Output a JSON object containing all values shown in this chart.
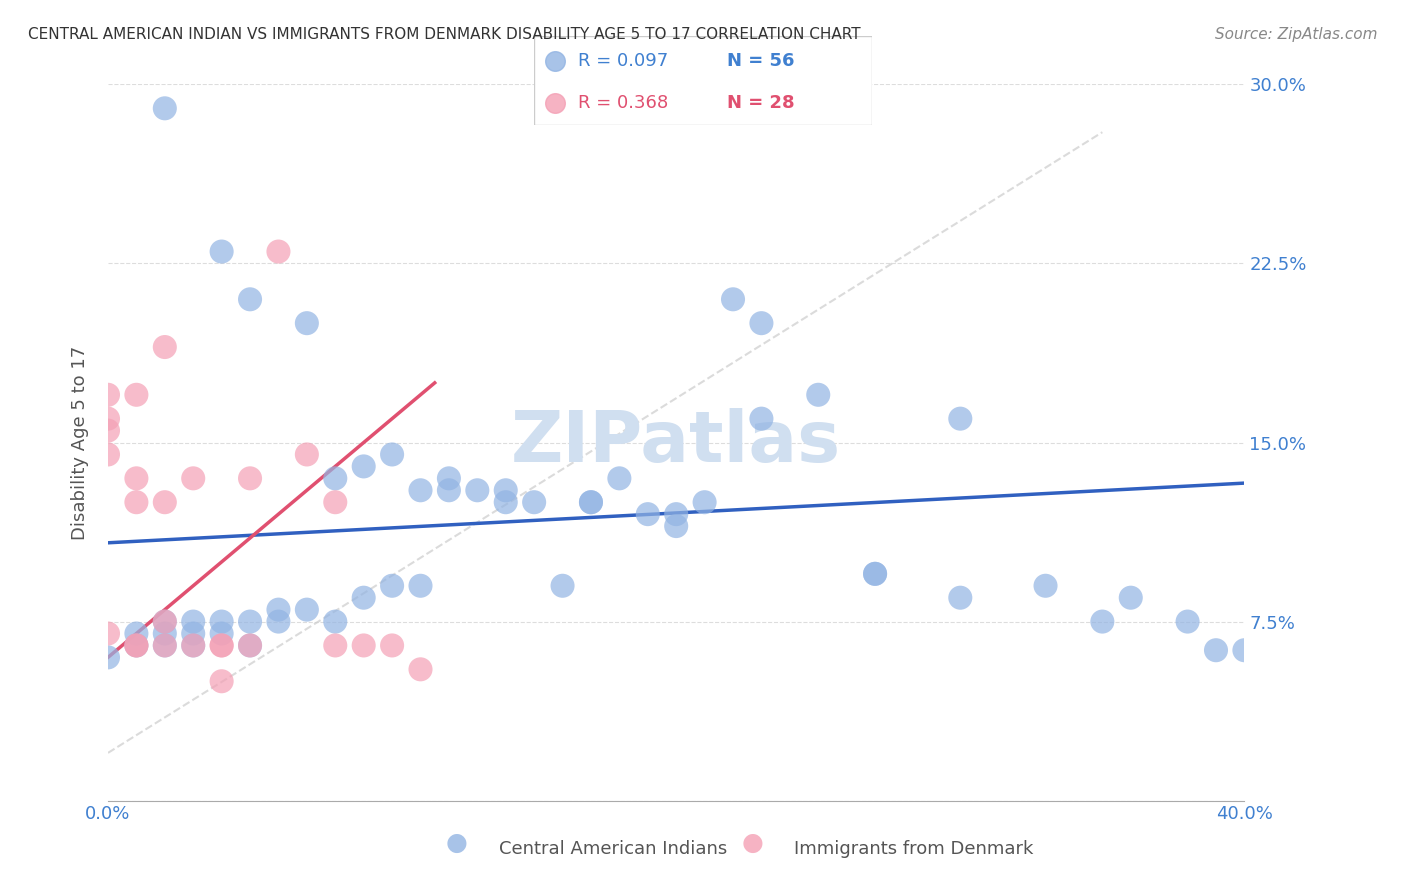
{
  "title": "CENTRAL AMERICAN INDIAN VS IMMIGRANTS FROM DENMARK DISABILITY AGE 5 TO 17 CORRELATION CHART",
  "source": "Source: ZipAtlas.com",
  "ylabel": "Disability Age 5 to 17",
  "xlabel": "",
  "xlim": [
    0.0,
    0.4
  ],
  "ylim": [
    0.0,
    0.3
  ],
  "xticks": [
    0.0,
    0.05,
    0.1,
    0.15,
    0.2,
    0.25,
    0.3,
    0.35,
    0.4
  ],
  "yticks": [
    0.0,
    0.075,
    0.15,
    0.225,
    0.3
  ],
  "ytick_labels": [
    "",
    "7.5%",
    "15.0%",
    "22.5%",
    "30.0%"
  ],
  "xtick_labels": [
    "0.0%",
    "",
    "",
    "",
    "",
    "",
    "",
    "",
    "40.0%"
  ],
  "blue_R": "0.097",
  "blue_N": "56",
  "pink_R": "0.368",
  "pink_N": "28",
  "blue_color": "#92b4e3",
  "pink_color": "#f4a0b5",
  "trend_blue_color": "#3060c0",
  "trend_pink_color": "#e05070",
  "trend_dashed_color": "#cccccc",
  "watermark_color": "#d0dff0",
  "axis_color": "#4080d0",
  "grid_color": "#dddddd",
  "title_color": "#333333",
  "blue_scatter_x": [
    0.02,
    0.04,
    0.05,
    0.07,
    0.08,
    0.09,
    0.1,
    0.11,
    0.12,
    0.13,
    0.14,
    0.15,
    0.16,
    0.17,
    0.18,
    0.19,
    0.2,
    0.21,
    0.22,
    0.23,
    0.0,
    0.01,
    0.01,
    0.02,
    0.02,
    0.02,
    0.03,
    0.03,
    0.03,
    0.04,
    0.04,
    0.05,
    0.05,
    0.06,
    0.06,
    0.07,
    0.08,
    0.09,
    0.1,
    0.11,
    0.12,
    0.14,
    0.17,
    0.2,
    0.23,
    0.27,
    0.3,
    0.33,
    0.36,
    0.39,
    0.25,
    0.3,
    0.27,
    0.35,
    0.38,
    0.4
  ],
  "blue_scatter_y": [
    0.29,
    0.23,
    0.21,
    0.2,
    0.135,
    0.14,
    0.145,
    0.13,
    0.135,
    0.13,
    0.125,
    0.125,
    0.09,
    0.125,
    0.135,
    0.12,
    0.12,
    0.125,
    0.21,
    0.2,
    0.06,
    0.065,
    0.07,
    0.065,
    0.07,
    0.075,
    0.065,
    0.07,
    0.075,
    0.07,
    0.075,
    0.065,
    0.075,
    0.075,
    0.08,
    0.08,
    0.075,
    0.085,
    0.09,
    0.09,
    0.13,
    0.13,
    0.125,
    0.115,
    0.16,
    0.095,
    0.085,
    0.09,
    0.085,
    0.063,
    0.17,
    0.16,
    0.095,
    0.075,
    0.075,
    0.063
  ],
  "pink_scatter_x": [
    0.0,
    0.0,
    0.0,
    0.0,
    0.0,
    0.01,
    0.01,
    0.01,
    0.01,
    0.01,
    0.02,
    0.02,
    0.02,
    0.02,
    0.03,
    0.03,
    0.04,
    0.04,
    0.04,
    0.05,
    0.05,
    0.06,
    0.07,
    0.08,
    0.08,
    0.09,
    0.1,
    0.11
  ],
  "pink_scatter_y": [
    0.17,
    0.16,
    0.155,
    0.145,
    0.07,
    0.17,
    0.135,
    0.125,
    0.065,
    0.065,
    0.19,
    0.125,
    0.075,
    0.065,
    0.135,
    0.065,
    0.065,
    0.065,
    0.05,
    0.135,
    0.065,
    0.23,
    0.145,
    0.125,
    0.065,
    0.065,
    0.065,
    0.055
  ],
  "blue_trend_x": [
    0.0,
    0.4
  ],
  "blue_trend_y": [
    0.108,
    0.133
  ],
  "pink_trend_x": [
    0.0,
    0.115
  ],
  "pink_trend_y": [
    0.06,
    0.175
  ],
  "dashed_trend_x": [
    0.0,
    0.35
  ],
  "dashed_trend_y": [
    0.02,
    0.28
  ]
}
